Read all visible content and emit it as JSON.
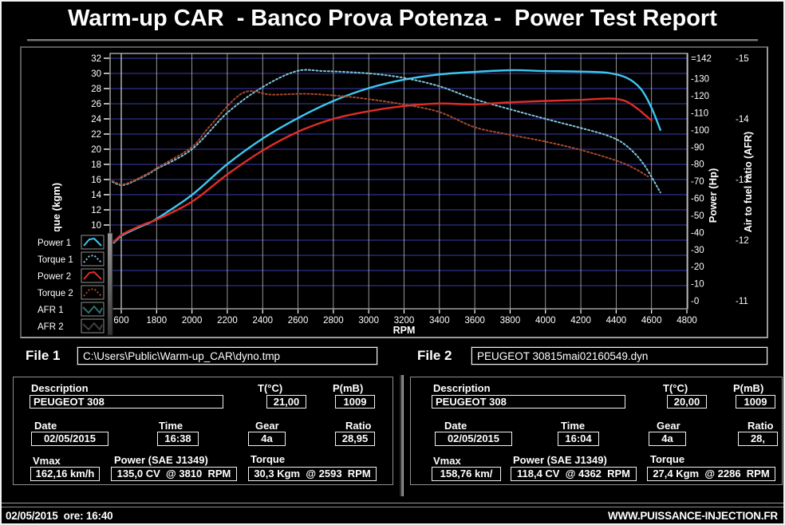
{
  "window": {
    "title": "Warm-up CAR  - Banco Prova Potenza -  Power Test Report",
    "statusbar_left": "02/05/2015  ore: 16:40",
    "statusbar_right": "WWW.PUISSANCE-INJECTION.FR"
  },
  "files": {
    "file1_label": "File 1",
    "file1_value": "C:\\Users\\Public\\Warm-up_CAR\\dyno.tmp",
    "file2_label": "File 2",
    "file2_value": "PEUGEOT 30815mai02160549.dyn"
  },
  "panels": [
    {
      "description_label": "Description",
      "description": "PEUGEOT 308",
      "temp_label": "T(°C)",
      "temp": "21,00",
      "pressure_label": "P(mB)",
      "pressure": "1009",
      "date_label": "Date",
      "date": "02/05/2015",
      "time_label": "Time",
      "time": "16:38",
      "gear_label": "Gear",
      "gear": "4a",
      "ratio_label": "Ratio",
      "ratio": "28,95",
      "vmax_label": "Vmax",
      "vmax": "162,16 km/h",
      "power_label": "Power (SAE J1349)",
      "power": "135,0 CV  @ 3810  RPM",
      "torque_label": "Torque",
      "torque": "30,3 Kgm  @ 2593  RPM"
    },
    {
      "description_label": "Description",
      "description": "PEUGEOT 308",
      "temp_label": "T(°C)",
      "temp": "20,00",
      "pressure_label": "P(mB)",
      "pressure": "1009",
      "date_label": "Date",
      "date": "02/05/2015",
      "time_label": "Time",
      "time": "16:04",
      "gear_label": "Gear",
      "gear": "4a",
      "ratio_label": "Ratio",
      "ratio": "28,",
      "vmax_label": "Vmax",
      "vmax": "158,76 km/",
      "power_label": "Power (SAE J1349)",
      "power": "118,4 CV  @ 4362  RPM",
      "torque_label": "Torque",
      "torque": "27,4 Kgm  @ 2286  RPM"
    }
  ],
  "chart_data": {
    "type": "line",
    "xlabel": "RPM",
    "x_ticks": [
      600,
      1800,
      2000,
      2200,
      2400,
      2600,
      2800,
      3000,
      3200,
      3400,
      3600,
      3800,
      4000,
      4200,
      4400,
      4600,
      4800
    ],
    "left_axis": {
      "label": "Torque (kgm)",
      "min": 0,
      "max": 32,
      "grid_step": 2,
      "shown_ticks": [
        32,
        30,
        28,
        26,
        24,
        22,
        20,
        18,
        16,
        14,
        12,
        10
      ]
    },
    "right_axis_power": {
      "label": "Power (Hp)",
      "min": 0,
      "max": 142,
      "ticks": [
        142,
        130,
        120,
        110,
        100,
        90,
        80,
        70,
        60,
        50,
        40,
        30,
        20,
        10,
        0
      ]
    },
    "right_axis_afr": {
      "label": "Air to fuel ratio (AFR)",
      "min": 11,
      "max": 15,
      "ticks": [
        15,
        14,
        13,
        12,
        11
      ]
    },
    "colors": {
      "grid_h": "#3b3bb4",
      "grid_v": "#dcdcdc",
      "plot_border": "#c8c8c8",
      "text": "#ffffff",
      "legend_border": "#909090"
    },
    "legend": [
      {
        "label": "Power 1",
        "color": "#3ec7f0",
        "style": "solid",
        "shape": "chevron"
      },
      {
        "label": "Torque 1",
        "color": "#7fc6de",
        "style": "dotted",
        "shape": "chevron"
      },
      {
        "label": "Power 2",
        "color": "#e02d26",
        "style": "solid",
        "shape": "chevron"
      },
      {
        "label": "Torque 2",
        "color": "#a64a30",
        "style": "dotted",
        "shape": "chevron"
      },
      {
        "label": "AFR 1",
        "color": "#2f6f6d",
        "style": "solid",
        "shape": "zigzag"
      },
      {
        "label": "AFR 2",
        "color": "#3f3f3f",
        "style": "solid",
        "shape": "zigzag"
      }
    ],
    "series": [
      {
        "name": "Power 1",
        "axis": "power",
        "style": "solid",
        "color": "#3ec7f0",
        "points": [
          [
            350,
            34
          ],
          [
            600,
            38
          ],
          [
            1000,
            41.5
          ],
          [
            1400,
            44.5
          ],
          [
            1800,
            48
          ],
          [
            2000,
            62
          ],
          [
            2200,
            80
          ],
          [
            2400,
            95
          ],
          [
            2600,
            107
          ],
          [
            2800,
            117
          ],
          [
            3000,
            124.5
          ],
          [
            3200,
            129.5
          ],
          [
            3400,
            132.5
          ],
          [
            3600,
            134
          ],
          [
            3810,
            135
          ],
          [
            4000,
            134.5
          ],
          [
            4200,
            134.2
          ],
          [
            4350,
            133.5
          ],
          [
            4460,
            130.5
          ],
          [
            4540,
            124
          ],
          [
            4600,
            113
          ],
          [
            4650,
            100
          ]
        ]
      },
      {
        "name": "Torque 1",
        "axis": "torque",
        "style": "dotted",
        "color": "#7fc6de",
        "points": [
          [
            300,
            15.7
          ],
          [
            550,
            15.3
          ],
          [
            800,
            15.4
          ],
          [
            1200,
            16.1
          ],
          [
            1600,
            16.9
          ],
          [
            1800,
            17.4
          ],
          [
            2000,
            20.0
          ],
          [
            2200,
            24.8
          ],
          [
            2400,
            28.2
          ],
          [
            2593,
            30.3
          ],
          [
            2750,
            30.3
          ],
          [
            3000,
            30.0
          ],
          [
            3200,
            29.4
          ],
          [
            3400,
            28.3
          ],
          [
            3600,
            26.6
          ],
          [
            3810,
            25.2
          ],
          [
            4000,
            24.0
          ],
          [
            4200,
            22.8
          ],
          [
            4350,
            21.8
          ],
          [
            4450,
            20.6
          ],
          [
            4550,
            18.2
          ],
          [
            4650,
            14.3
          ]
        ]
      },
      {
        "name": "Power 2",
        "axis": "power",
        "style": "solid",
        "color": "#e02d26",
        "points": [
          [
            350,
            34.5
          ],
          [
            600,
            38.5
          ],
          [
            1000,
            42
          ],
          [
            1400,
            45
          ],
          [
            1800,
            47.5
          ],
          [
            2000,
            58
          ],
          [
            2200,
            74
          ],
          [
            2400,
            88
          ],
          [
            2600,
            99
          ],
          [
            2800,
            106.5
          ],
          [
            3000,
            111
          ],
          [
            3200,
            114
          ],
          [
            3400,
            115.5
          ],
          [
            3600,
            115
          ],
          [
            3800,
            116.2
          ],
          [
            4000,
            117
          ],
          [
            4200,
            117.6
          ],
          [
            4362,
            118.4
          ],
          [
            4450,
            117
          ],
          [
            4520,
            112.5
          ],
          [
            4600,
            105.5
          ]
        ]
      },
      {
        "name": "Torque 2",
        "axis": "torque",
        "style": "dotted",
        "color": "#a64a30",
        "points": [
          [
            300,
            15.8
          ],
          [
            550,
            15.4
          ],
          [
            800,
            15.5
          ],
          [
            1200,
            16.2
          ],
          [
            1600,
            17.0
          ],
          [
            1800,
            17.5
          ],
          [
            2000,
            20.3
          ],
          [
            2100,
            23.0
          ],
          [
            2286,
            27.4
          ],
          [
            2450,
            27.2
          ],
          [
            2650,
            27.3
          ],
          [
            2850,
            27.0
          ],
          [
            3000,
            26.6
          ],
          [
            3200,
            25.9
          ],
          [
            3400,
            24.9
          ],
          [
            3600,
            22.9
          ],
          [
            3800,
            21.9
          ],
          [
            4000,
            21.0
          ],
          [
            4200,
            19.9
          ],
          [
            4400,
            18.5
          ],
          [
            4500,
            17.5
          ],
          [
            4580,
            16.4
          ]
        ]
      },
      {
        "name": "AFR 1",
        "axis": "afr",
        "style": "solid",
        "color": "#2f6f6d",
        "points": []
      },
      {
        "name": "AFR 2",
        "axis": "afr",
        "style": "solid",
        "color": "#3f3f3f",
        "points": []
      }
    ]
  }
}
